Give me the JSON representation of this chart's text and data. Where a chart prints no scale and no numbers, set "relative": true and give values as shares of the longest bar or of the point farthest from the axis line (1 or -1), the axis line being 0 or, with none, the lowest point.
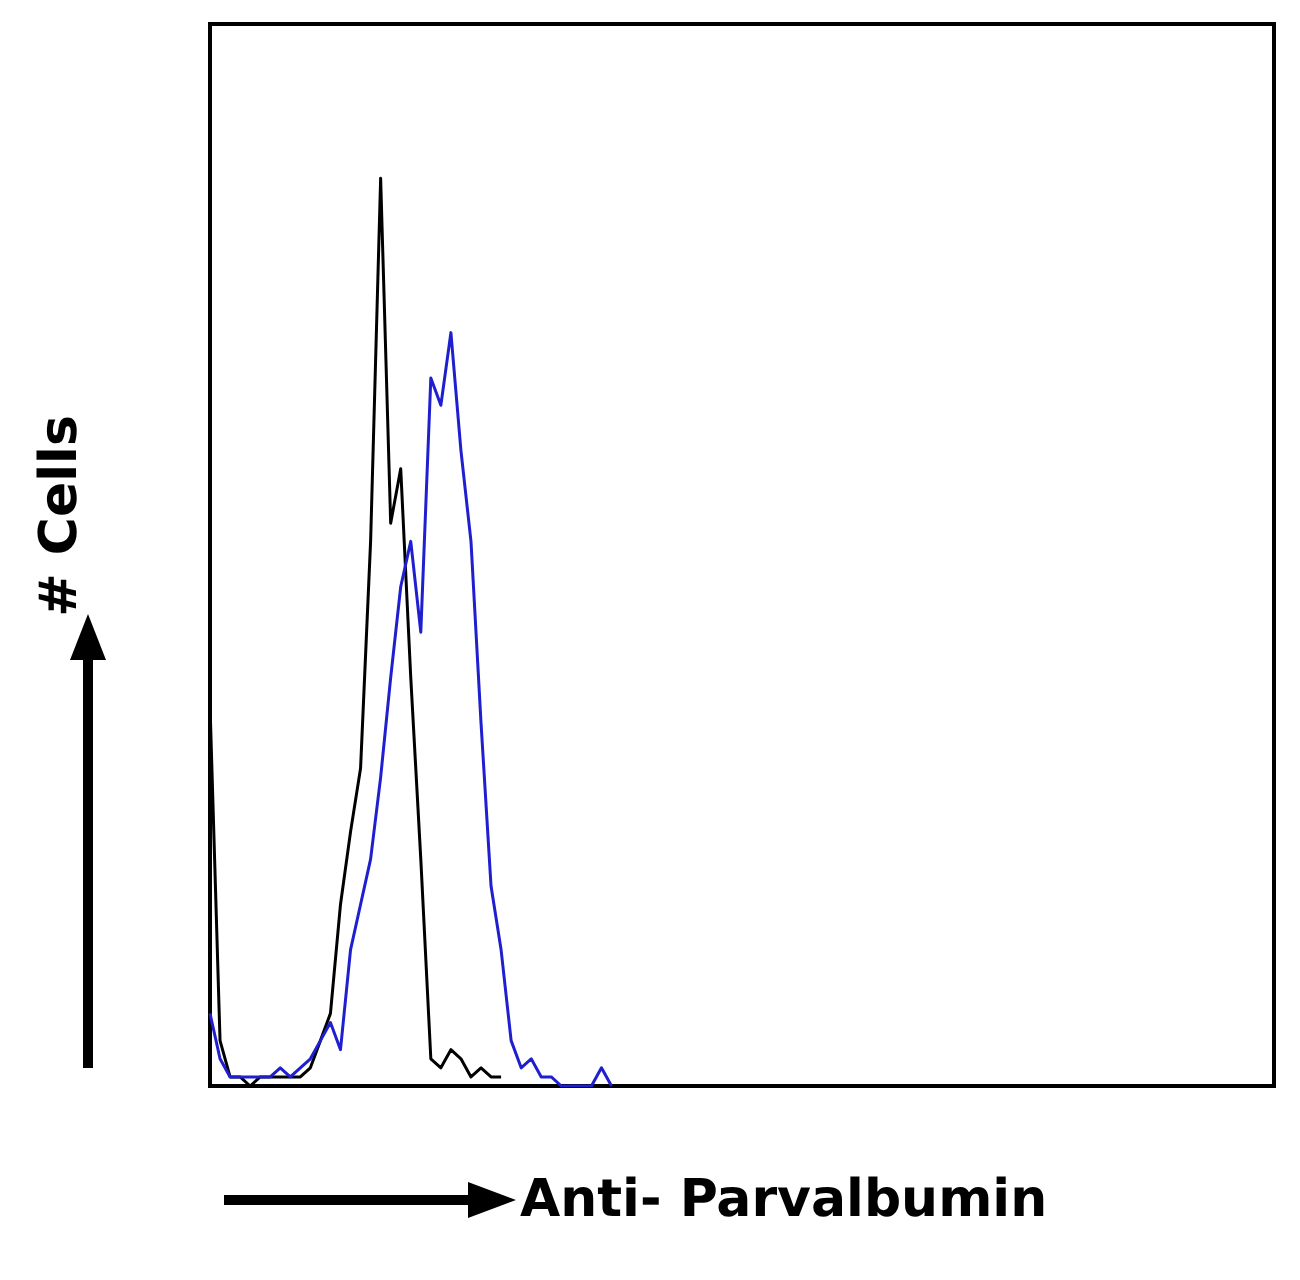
{
  "chart_data": {
    "type": "line",
    "relative": true,
    "xlabel": "Anti- Parvalbumin",
    "ylabel": "# Cells",
    "marker": "none",
    "grid": false,
    "categories": [
      null,
      null,
      null,
      null,
      null,
      null,
      null,
      null,
      null,
      null,
      null,
      null,
      null,
      null,
      null,
      null,
      null,
      null,
      null,
      null,
      null,
      null,
      null,
      null,
      null,
      null,
      null,
      null,
      null,
      null,
      null,
      null,
      null,
      null,
      null,
      null,
      null,
      null,
      null,
      null,
      null,
      null,
      null,
      null,
      null,
      null,
      null,
      null,
      null,
      null,
      null,
      null,
      null,
      null,
      null,
      null,
      null,
      null,
      null,
      null,
      null,
      null,
      null,
      null,
      null,
      null,
      null,
      null,
      null,
      null,
      null,
      null,
      null,
      null,
      null,
      null,
      null,
      null,
      null,
      null,
      null,
      null,
      null,
      null,
      null,
      null,
      null,
      null,
      null,
      null,
      null,
      null,
      null,
      null,
      null,
      null,
      null,
      null,
      null,
      null,
      null,
      null,
      null,
      null,
      null,
      null,
      null
    ],
    "series": [
      {
        "color": "#000000",
        "values": [
          0.42,
          0.05,
          0.01,
          0.01,
          0,
          0.01,
          0.01,
          0.01,
          0.01,
          0.01,
          0.02,
          0.05,
          0.08,
          0.2,
          0.28,
          0.35,
          0.6,
          1,
          0.62,
          0.68,
          0.45,
          0.25,
          0.03,
          0.02,
          0.04,
          0.03,
          0.01,
          0.02,
          0.01,
          0.01,
          null,
          null,
          null,
          null,
          null,
          null,
          null,
          null,
          null,
          null,
          null,
          null,
          null,
          null,
          null,
          null,
          null,
          null,
          null,
          null,
          null,
          null,
          null,
          null,
          null,
          null,
          null,
          null,
          null,
          null,
          null,
          null,
          null,
          null,
          null,
          null,
          null,
          null,
          null,
          null,
          null,
          null,
          null,
          null,
          null,
          null,
          null,
          null,
          null,
          null,
          null,
          null,
          null,
          null,
          null,
          null,
          null,
          null,
          null,
          null,
          null,
          null,
          null,
          null,
          null,
          null,
          null,
          null,
          null,
          null,
          null,
          null,
          null,
          null,
          null,
          null,
          null
        ]
      },
      {
        "color": "#1f1fd0",
        "values": [
          0.08,
          0.03,
          0.01,
          0.01,
          0.01,
          0.01,
          0.01,
          0.02,
          0.01,
          0.02,
          0.03,
          0.05,
          0.07,
          0.04,
          0.15,
          0.2,
          0.25,
          0.34,
          0.45,
          0.55,
          0.6,
          0.5,
          0.78,
          0.75,
          0.83,
          0.7,
          0.6,
          0.4,
          0.22,
          0.15,
          0.05,
          0.02,
          0.03,
          0.01,
          0.01,
          0,
          0,
          0,
          0,
          0.02,
          0,
          null,
          null,
          null,
          null,
          null,
          null,
          null,
          null,
          null,
          null,
          null,
          null,
          null,
          null,
          null,
          null,
          null,
          null,
          null,
          null,
          null,
          null,
          null,
          null,
          null,
          null,
          null,
          null,
          null,
          null,
          null,
          null,
          null,
          null,
          null,
          null,
          null,
          null,
          null,
          null,
          null,
          null,
          null,
          null,
          null,
          null,
          null,
          null,
          null,
          null,
          null,
          null,
          null,
          null,
          null,
          null,
          null,
          null,
          null,
          null,
          null,
          null,
          null,
          null,
          null,
          null
        ]
      }
    ]
  }
}
